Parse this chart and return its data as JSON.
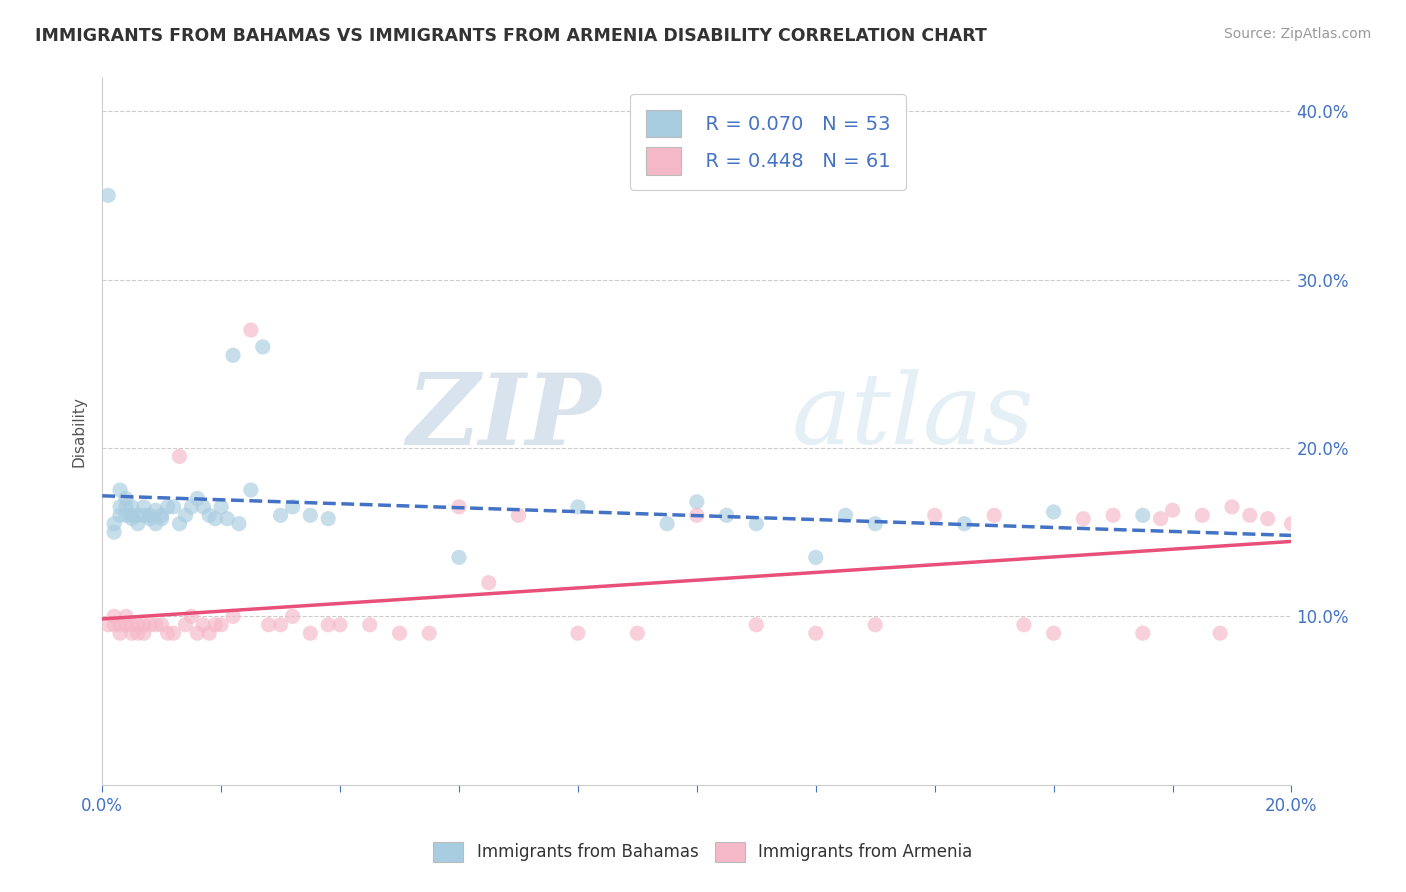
{
  "title": "IMMIGRANTS FROM BAHAMAS VS IMMIGRANTS FROM ARMENIA DISABILITY CORRELATION CHART",
  "source": "Source: ZipAtlas.com",
  "ylabel": "Disability",
  "xlim": [
    0.0,
    0.2
  ],
  "ylim": [
    0.0,
    0.42
  ],
  "yticks": [
    0.1,
    0.2,
    0.3,
    0.4
  ],
  "ytick_labels": [
    "10.0%",
    "20.0%",
    "30.0%",
    "40.0%"
  ],
  "legend_r1": "R = 0.070",
  "legend_n1": "N = 53",
  "legend_r2": "R = 0.448",
  "legend_n2": "N = 61",
  "color_bahamas": "#a8cce0",
  "color_armenia": "#f5b8c8",
  "trendline_bahamas": "#4472c4",
  "trendline_armenia": "#e8507a",
  "watermark_zip": "ZIP",
  "watermark_atlas": "atlas",
  "background_color": "#ffffff",
  "bahamas_x": [
    0.001,
    0.002,
    0.002,
    0.003,
    0.003,
    0.003,
    0.004,
    0.004,
    0.004,
    0.005,
    0.005,
    0.005,
    0.006,
    0.006,
    0.007,
    0.007,
    0.008,
    0.008,
    0.009,
    0.009,
    0.01,
    0.01,
    0.011,
    0.012,
    0.013,
    0.014,
    0.015,
    0.016,
    0.017,
    0.018,
    0.019,
    0.02,
    0.021,
    0.022,
    0.023,
    0.025,
    0.027,
    0.03,
    0.032,
    0.035,
    0.038,
    0.06,
    0.08,
    0.095,
    0.1,
    0.105,
    0.11,
    0.12,
    0.125,
    0.13,
    0.145,
    0.16,
    0.175
  ],
  "bahamas_y": [
    0.35,
    0.155,
    0.15,
    0.175,
    0.165,
    0.16,
    0.17,
    0.165,
    0.16,
    0.165,
    0.16,
    0.158,
    0.16,
    0.155,
    0.165,
    0.16,
    0.16,
    0.158,
    0.163,
    0.155,
    0.16,
    0.158,
    0.165,
    0.165,
    0.155,
    0.16,
    0.165,
    0.17,
    0.165,
    0.16,
    0.158,
    0.165,
    0.158,
    0.255,
    0.155,
    0.175,
    0.26,
    0.16,
    0.165,
    0.16,
    0.158,
    0.135,
    0.165,
    0.155,
    0.168,
    0.16,
    0.155,
    0.135,
    0.16,
    0.155,
    0.155,
    0.162,
    0.16
  ],
  "armenia_x": [
    0.001,
    0.002,
    0.002,
    0.003,
    0.003,
    0.004,
    0.004,
    0.005,
    0.005,
    0.006,
    0.006,
    0.007,
    0.007,
    0.008,
    0.009,
    0.01,
    0.011,
    0.012,
    0.013,
    0.014,
    0.015,
    0.016,
    0.017,
    0.018,
    0.019,
    0.02,
    0.022,
    0.025,
    0.028,
    0.03,
    0.032,
    0.035,
    0.038,
    0.04,
    0.045,
    0.05,
    0.055,
    0.06,
    0.065,
    0.07,
    0.08,
    0.09,
    0.1,
    0.11,
    0.12,
    0.13,
    0.14,
    0.15,
    0.155,
    0.16,
    0.165,
    0.17,
    0.175,
    0.178,
    0.18,
    0.185,
    0.188,
    0.19,
    0.193,
    0.196,
    0.2
  ],
  "armenia_y": [
    0.095,
    0.1,
    0.095,
    0.095,
    0.09,
    0.1,
    0.095,
    0.095,
    0.09,
    0.095,
    0.09,
    0.095,
    0.09,
    0.095,
    0.095,
    0.095,
    0.09,
    0.09,
    0.195,
    0.095,
    0.1,
    0.09,
    0.095,
    0.09,
    0.095,
    0.095,
    0.1,
    0.27,
    0.095,
    0.095,
    0.1,
    0.09,
    0.095,
    0.095,
    0.095,
    0.09,
    0.09,
    0.165,
    0.12,
    0.16,
    0.09,
    0.09,
    0.16,
    0.095,
    0.09,
    0.095,
    0.16,
    0.16,
    0.095,
    0.09,
    0.158,
    0.16,
    0.09,
    0.158,
    0.163,
    0.16,
    0.09,
    0.165,
    0.16,
    0.158,
    0.155
  ]
}
